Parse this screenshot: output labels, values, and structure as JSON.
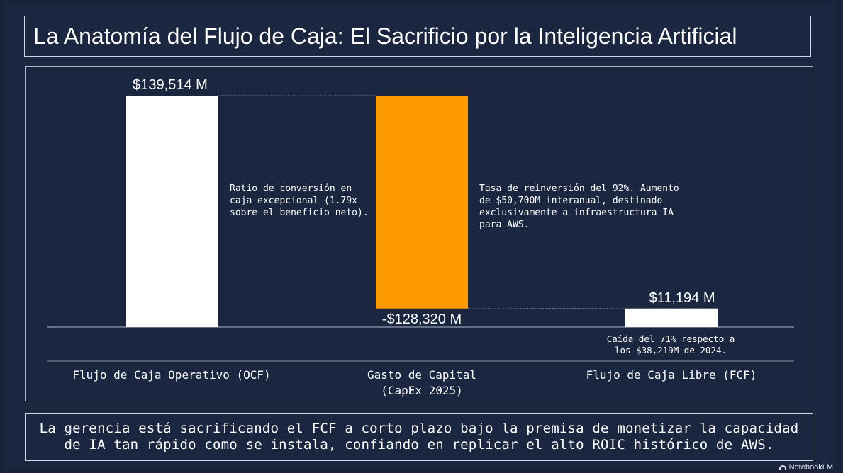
{
  "title": "La Anatomía del Flujo de Caja: El Sacrificio por la Inteligencia Artificial",
  "footer": "La gerencia está sacrificando el FCF a corto plazo bajo la premisa de monetizar la capacidad de IA tan rápido como se instala, confiando en replicar el alto ROIC histórico de AWS.",
  "brand": "NotebookLM",
  "colors": {
    "background": "#1b2740",
    "ocf": "#ffffff",
    "capex": "#ff9900",
    "fcf": "#ffffff",
    "connector": "#8a93a3"
  },
  "chart_data": {
    "type": "bar",
    "subtype": "waterfall",
    "title": "La Anatomía del Flujo de Caja: El Sacrificio por la Inteligencia Artificial",
    "units": "M",
    "categories": [
      "Flujo de Caja Operativo (OCF)",
      "Gasto de Capital (CapEx 2025)",
      "Flujo de Caja Libre (FCF)"
    ],
    "category_lines": [
      [
        "Flujo de Caja Operativo (OCF)"
      ],
      [
        "Gasto de Capital",
        "(CapEx 2025)"
      ],
      [
        "Flujo de Caja Libre (FCF)"
      ]
    ],
    "values": [
      139514,
      -128320,
      11194
    ],
    "value_labels": [
      "$139,514 M",
      "-$128,320 M",
      "$11,194 M"
    ],
    "ylim": [
      0,
      139514
    ],
    "grid": false,
    "legend": "none",
    "annotations": [
      {
        "category": "Flujo de Caja Operativo (OCF)",
        "lines": [
          "Ratio de conversión en",
          "caja excepcional (1.79x",
          "sobre el beneficio neto)."
        ]
      },
      {
        "category": "Gasto de Capital (CapEx 2025)",
        "lines": [
          "Tasa de reinversión del 92%. Aumento",
          "de $50,700M interanual, destinado",
          "exclusivamente a infraestructura IA",
          "para AWS."
        ]
      },
      {
        "category": "Flujo de Caja Libre (FCF)",
        "lines": [
          "Caída del 71% respecto a",
          "los $38,219M de 2024."
        ]
      }
    ]
  }
}
